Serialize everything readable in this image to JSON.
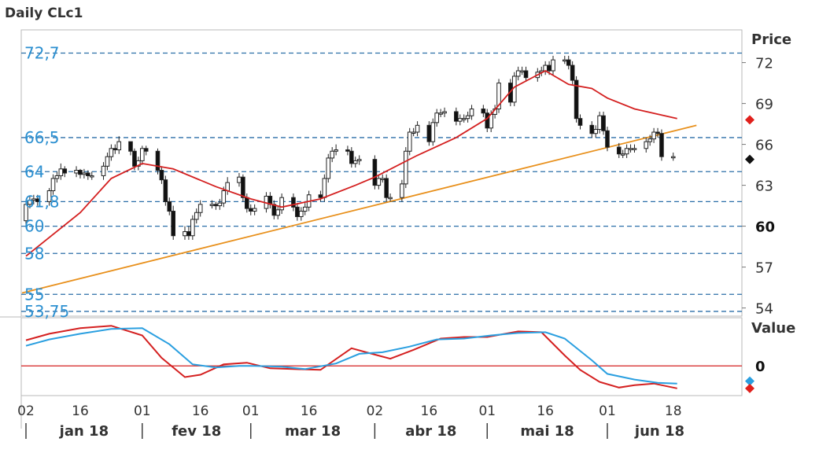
{
  "chart_data": {
    "type": "candlestick",
    "title": "Daily CLc1",
    "colors": {
      "bull_candle": "#ffffff",
      "bear_candle": "#111111",
      "moving_average": "#d42020",
      "trendline": "#e8901c",
      "level_lines": "#2b6fa8",
      "level_labels": "#2b8fd0",
      "osc_red": "#d42020",
      "osc_blue": "#2a9fe0",
      "marker_red": "#e0201c",
      "marker_black": "#111111",
      "marker_blue": "#2a9fe0"
    },
    "price_panel": {
      "ylabel": "Price",
      "ylim": [
        53.4,
        74.4
      ],
      "ticks": [
        {
          "value": 72,
          "label": "72",
          "bold": false
        },
        {
          "value": 69,
          "label": "69",
          "bold": false
        },
        {
          "value": 66,
          "label": "66",
          "bold": false
        },
        {
          "value": 63,
          "label": "63",
          "bold": false
        },
        {
          "value": 60,
          "label": "60",
          "bold": true
        },
        {
          "value": 57,
          "label": "57",
          "bold": false
        },
        {
          "value": 54,
          "label": "54",
          "bold": false
        }
      ],
      "horizontal_levels": [
        {
          "value": 72.7,
          "label": "72,7"
        },
        {
          "value": 66.5,
          "label": "66,5"
        },
        {
          "value": 64,
          "label": "64"
        },
        {
          "value": 61.8,
          "label": "61,8"
        },
        {
          "value": 60,
          "label": "60"
        },
        {
          "value": 58,
          "label": "58"
        },
        {
          "value": 55,
          "label": "55"
        },
        {
          "value": 53.75,
          "label": "53,75"
        }
      ],
      "trendline": {
        "from": {
          "x": "2018-01-01",
          "y": 55.1
        },
        "to": {
          "x": "2018-06-24",
          "y": 67.4
        }
      },
      "right_markers": [
        {
          "value": 67.8,
          "color": "#e0201c"
        },
        {
          "value": 64.9,
          "color": "#111111"
        }
      ]
    },
    "candles": {
      "dates": [
        "2018-01-02",
        "2018-01-03",
        "2018-01-04",
        "2018-01-05",
        "2018-01-08",
        "2018-01-09",
        "2018-01-10",
        "2018-01-11",
        "2018-01-12",
        "2018-01-15",
        "2018-01-16",
        "2018-01-17",
        "2018-01-18",
        "2018-01-19",
        "2018-01-22",
        "2018-01-23",
        "2018-01-24",
        "2018-01-25",
        "2018-01-26",
        "2018-01-29",
        "2018-01-30",
        "2018-01-31",
        "2018-02-01",
        "2018-02-02",
        "2018-02-05",
        "2018-02-06",
        "2018-02-07",
        "2018-02-08",
        "2018-02-09",
        "2018-02-12",
        "2018-02-13",
        "2018-02-14",
        "2018-02-15",
        "2018-02-16",
        "2018-02-19",
        "2018-02-20",
        "2018-02-21",
        "2018-02-22",
        "2018-02-23",
        "2018-02-26",
        "2018-02-27",
        "2018-02-28",
        "2018-03-01",
        "2018-03-02",
        "2018-03-05",
        "2018-03-06",
        "2018-03-07",
        "2018-03-08",
        "2018-03-09",
        "2018-03-12",
        "2018-03-13",
        "2018-03-14",
        "2018-03-15",
        "2018-03-16",
        "2018-03-19",
        "2018-03-20",
        "2018-03-21",
        "2018-03-22",
        "2018-03-23",
        "2018-03-26",
        "2018-03-27",
        "2018-03-28",
        "2018-03-29",
        "2018-04-02",
        "2018-04-03",
        "2018-04-04",
        "2018-04-05",
        "2018-04-06",
        "2018-04-09",
        "2018-04-10",
        "2018-04-11",
        "2018-04-12",
        "2018-04-13",
        "2018-04-16",
        "2018-04-17",
        "2018-04-18",
        "2018-04-19",
        "2018-04-20",
        "2018-04-23",
        "2018-04-24",
        "2018-04-25",
        "2018-04-26",
        "2018-04-27",
        "2018-04-30",
        "2018-05-01",
        "2018-05-02",
        "2018-05-03",
        "2018-05-04",
        "2018-05-07",
        "2018-05-08",
        "2018-05-09",
        "2018-05-10",
        "2018-05-11",
        "2018-05-14",
        "2018-05-15",
        "2018-05-16",
        "2018-05-17",
        "2018-05-18",
        "2018-05-21",
        "2018-05-22",
        "2018-05-23",
        "2018-05-24",
        "2018-05-25",
        "2018-05-28",
        "2018-05-29",
        "2018-05-30",
        "2018-05-31",
        "2018-06-01",
        "2018-06-04",
        "2018-06-05",
        "2018-06-06",
        "2018-06-07",
        "2018-06-08",
        "2018-06-11",
        "2018-06-12",
        "2018-06-13",
        "2018-06-14",
        "2018-06-15",
        "2018-06-18"
      ],
      "open": [
        60.4,
        61.6,
        61.9,
        62.0,
        61.8,
        62.6,
        63.5,
        63.7,
        64.2,
        63.9,
        64.1,
        63.8,
        63.9,
        63.7,
        63.7,
        64.4,
        65.1,
        65.7,
        65.6,
        66.2,
        65.5,
        64.4,
        64.8,
        65.7,
        65.5,
        64.1,
        63.4,
        61.8,
        61.1,
        59.3,
        59.6,
        59.3,
        60.5,
        61.0,
        61.6,
        61.6,
        61.5,
        61.7,
        62.6,
        63.2,
        63.6,
        62.1,
        61.3,
        61.1,
        61.3,
        62.2,
        61.6,
        60.8,
        61.2,
        62.1,
        61.4,
        60.7,
        61.1,
        61.4,
        62.3,
        62.1,
        63.5,
        65.0,
        65.5,
        65.6,
        65.5,
        64.6,
        64.8,
        64.9,
        63.0,
        63.5,
        63.5,
        62.1,
        62.1,
        63.1,
        65.5,
        66.9,
        66.9,
        67.4,
        66.2,
        67.6,
        68.3,
        68.3,
        68.4,
        67.7,
        67.9,
        67.9,
        68.1,
        68.6,
        68.3,
        67.2,
        68.2,
        68.6,
        70.5,
        69.1,
        71.0,
        71.4,
        71.4,
        70.9,
        71.3,
        71.4,
        71.8,
        71.4,
        72.2,
        72.2,
        71.8,
        70.7,
        67.9,
        67.4,
        66.8,
        67.1,
        68.1,
        67.0,
        65.8,
        65.3,
        65.3,
        65.7,
        65.7,
        65.7,
        66.2,
        66.4,
        66.9,
        66.8,
        65.1
      ],
      "close": [
        61.6,
        61.9,
        62.0,
        61.8,
        62.6,
        63.5,
        63.7,
        64.2,
        63.9,
        64.1,
        63.8,
        63.9,
        63.7,
        63.7,
        64.4,
        65.1,
        65.7,
        65.6,
        66.2,
        65.5,
        64.4,
        64.8,
        65.7,
        65.5,
        64.1,
        63.4,
        61.8,
        61.1,
        59.3,
        59.6,
        59.3,
        60.5,
        61.0,
        61.6,
        61.6,
        61.5,
        61.7,
        62.6,
        63.2,
        63.6,
        62.1,
        61.3,
        61.1,
        61.3,
        62.2,
        61.6,
        60.8,
        61.2,
        62.1,
        61.4,
        60.7,
        61.1,
        61.4,
        62.3,
        62.1,
        63.5,
        65.0,
        65.5,
        65.6,
        65.5,
        64.6,
        64.8,
        64.9,
        63.0,
        63.5,
        63.5,
        62.1,
        62.1,
        63.1,
        65.5,
        66.9,
        66.9,
        67.4,
        66.2,
        67.6,
        68.3,
        68.3,
        68.4,
        67.7,
        67.9,
        67.9,
        68.1,
        68.6,
        68.3,
        67.2,
        68.2,
        68.6,
        70.5,
        69.1,
        71.0,
        71.4,
        71.4,
        70.9,
        71.3,
        71.4,
        71.8,
        71.4,
        72.2,
        72.2,
        71.8,
        70.7,
        67.9,
        67.4,
        66.8,
        67.1,
        68.1,
        67.0,
        65.8,
        65.3,
        65.3,
        65.7,
        65.7,
        65.7,
        66.2,
        66.4,
        66.9,
        66.8,
        65.1,
        65.1
      ],
      "high": [
        61.8,
        62.2,
        62.3,
        62.3,
        62.8,
        63.8,
        64.0,
        64.6,
        64.4,
        64.4,
        64.2,
        64.2,
        64.1,
        64.0,
        64.7,
        65.4,
        66.0,
        66.0,
        66.6,
        66.0,
        65.7,
        65.1,
        65.9,
        65.9,
        65.7,
        64.4,
        63.7,
        62.1,
        61.5,
        60.0,
        60.0,
        60.8,
        61.3,
        61.9,
        61.9,
        61.8,
        62.0,
        62.9,
        63.6,
        63.9,
        63.8,
        62.4,
        61.6,
        61.6,
        62.5,
        62.5,
        61.9,
        61.5,
        62.4,
        62.4,
        61.7,
        61.4,
        61.7,
        62.6,
        62.6,
        63.8,
        65.3,
        65.8,
        66.0,
        65.9,
        65.8,
        65.1,
        65.2,
        65.2,
        63.8,
        63.8,
        63.8,
        62.4,
        63.4,
        65.8,
        67.2,
        67.2,
        67.7,
        67.7,
        67.9,
        68.6,
        68.6,
        68.7,
        68.7,
        68.2,
        68.2,
        68.4,
        68.9,
        68.9,
        68.6,
        68.5,
        68.9,
        70.8,
        70.8,
        71.3,
        71.7,
        71.7,
        71.7,
        71.6,
        71.7,
        72.1,
        72.1,
        72.5,
        72.5,
        72.5,
        72.1,
        71.0,
        68.2,
        67.7,
        67.4,
        68.4,
        68.4,
        67.3,
        66.1,
        65.6,
        66.0,
        66.0,
        66.0,
        66.5,
        66.7,
        67.2,
        67.2,
        67.1,
        65.4
      ],
      "low": [
        60.1,
        61.3,
        61.6,
        61.5,
        61.5,
        62.3,
        63.2,
        63.4,
        63.6,
        63.6,
        63.5,
        63.5,
        63.4,
        63.4,
        63.4,
        64.1,
        64.8,
        65.3,
        65.3,
        65.2,
        64.1,
        64.1,
        64.5,
        65.2,
        63.8,
        63.1,
        61.5,
        60.8,
        59.0,
        59.0,
        59.0,
        59.0,
        60.2,
        60.7,
        61.3,
        61.2,
        61.2,
        61.4,
        62.3,
        62.9,
        61.8,
        61.0,
        60.8,
        60.8,
        61.0,
        61.3,
        60.5,
        60.5,
        60.9,
        61.1,
        60.4,
        60.4,
        60.8,
        61.1,
        61.8,
        61.8,
        63.2,
        64.7,
        65.2,
        65.2,
        64.3,
        64.3,
        64.5,
        62.7,
        62.7,
        63.2,
        61.8,
        61.8,
        61.8,
        62.8,
        65.2,
        66.6,
        66.6,
        65.9,
        65.9,
        67.3,
        68.0,
        68.0,
        67.4,
        67.4,
        67.6,
        67.6,
        67.8,
        68.0,
        66.9,
        66.9,
        67.9,
        68.3,
        68.8,
        68.8,
        70.7,
        71.1,
        70.6,
        70.6,
        71.0,
        71.1,
        71.1,
        71.1,
        71.9,
        71.5,
        70.4,
        67.6,
        67.1,
        66.5,
        66.5,
        66.8,
        66.7,
        65.5,
        65.0,
        65.0,
        65.0,
        65.4,
        65.4,
        65.4,
        65.9,
        66.1,
        66.5,
        64.8,
        64.8
      ]
    },
    "moving_average": {
      "dates": [
        "2018-01-02",
        "2018-01-16",
        "2018-01-24",
        "2018-02-01",
        "2018-02-09",
        "2018-02-20",
        "2018-03-01",
        "2018-03-09",
        "2018-03-19",
        "2018-03-28",
        "2018-04-02",
        "2018-04-13",
        "2018-04-23",
        "2018-05-01",
        "2018-05-08",
        "2018-05-16",
        "2018-05-22",
        "2018-05-28",
        "2018-06-01",
        "2018-06-08",
        "2018-06-19"
      ],
      "values": [
        57.8,
        61.0,
        63.5,
        64.6,
        64.2,
        62.9,
        62.0,
        61.4,
        62.0,
        63.0,
        63.6,
        65.2,
        66.5,
        67.9,
        70.2,
        71.4,
        70.4,
        70.1,
        69.4,
        68.6,
        67.9
      ]
    },
    "oscillator_panel": {
      "ylabel": "Value",
      "ylim": [
        -0.37,
        0.6
      ],
      "ticks": [
        {
          "value": 0,
          "label": "0"
        }
      ],
      "zero_line": true,
      "series": [
        {
          "color": "#d42020",
          "dates": [
            "2018-01-02",
            "2018-01-08",
            "2018-01-16",
            "2018-01-24",
            "2018-02-01",
            "2018-02-06",
            "2018-02-12",
            "2018-02-16",
            "2018-02-22",
            "2018-02-28",
            "2018-03-06",
            "2018-03-12",
            "2018-03-19",
            "2018-03-27",
            "2018-04-02",
            "2018-04-06",
            "2018-04-12",
            "2018-04-19",
            "2018-04-25",
            "2018-05-01",
            "2018-05-09",
            "2018-05-15",
            "2018-05-21",
            "2018-05-25",
            "2018-05-30",
            "2018-06-04",
            "2018-06-08",
            "2018-06-13",
            "2018-06-19"
          ],
          "values": [
            0.32,
            0.4,
            0.47,
            0.5,
            0.38,
            0.1,
            -0.14,
            -0.11,
            0.02,
            0.04,
            -0.03,
            -0.04,
            -0.05,
            0.22,
            0.14,
            0.09,
            0.2,
            0.34,
            0.36,
            0.36,
            0.43,
            0.42,
            0.13,
            -0.05,
            -0.2,
            -0.27,
            -0.24,
            -0.22,
            -0.28
          ]
        },
        {
          "color": "#2a9fe0",
          "dates": [
            "2018-01-02",
            "2018-01-08",
            "2018-01-16",
            "2018-01-24",
            "2018-02-01",
            "2018-02-08",
            "2018-02-14",
            "2018-02-20",
            "2018-02-26",
            "2018-03-02",
            "2018-03-09",
            "2018-03-15",
            "2018-03-23",
            "2018-03-29",
            "2018-04-04",
            "2018-04-11",
            "2018-04-18",
            "2018-04-25",
            "2018-05-02",
            "2018-05-09",
            "2018-05-16",
            "2018-05-21",
            "2018-05-28",
            "2018-06-01",
            "2018-06-08",
            "2018-06-14",
            "2018-06-19"
          ],
          "values": [
            0.25,
            0.33,
            0.4,
            0.46,
            0.47,
            0.27,
            0.02,
            -0.02,
            0.0,
            0.0,
            -0.01,
            -0.04,
            0.03,
            0.15,
            0.17,
            0.24,
            0.33,
            0.34,
            0.38,
            0.41,
            0.42,
            0.34,
            0.07,
            -0.1,
            -0.17,
            -0.21,
            -0.22
          ]
        }
      ],
      "right_markers": [
        {
          "value": -0.19,
          "color": "#2a9fe0"
        },
        {
          "value": -0.28,
          "color": "#e0201c"
        }
      ]
    },
    "x_axis": {
      "xlim": [
        "2018-01-02",
        "2018-06-28"
      ],
      "day_ticks": [
        {
          "date": "2018-01-02",
          "label": "02"
        },
        {
          "date": "2018-01-16",
          "label": "16"
        },
        {
          "date": "2018-02-01",
          "label": "01"
        },
        {
          "date": "2018-02-16",
          "label": "16"
        },
        {
          "date": "2018-03-01",
          "label": "01"
        },
        {
          "date": "2018-03-16",
          "label": "16"
        },
        {
          "date": "2018-04-02",
          "label": "02"
        },
        {
          "date": "2018-04-16",
          "label": "16"
        },
        {
          "date": "2018-05-01",
          "label": "01"
        },
        {
          "date": "2018-05-16",
          "label": "16"
        },
        {
          "date": "2018-06-01",
          "label": "01"
        },
        {
          "date": "2018-06-18",
          "label": "18"
        }
      ],
      "months": [
        {
          "label": "jan 18",
          "start": "2018-01-02",
          "end": "2018-02-01"
        },
        {
          "label": "fev 18",
          "start": "2018-02-01",
          "end": "2018-03-01"
        },
        {
          "label": "mar 18",
          "start": "2018-03-01",
          "end": "2018-04-02"
        },
        {
          "label": "abr 18",
          "start": "2018-04-02",
          "end": "2018-05-01"
        },
        {
          "label": "mai 18",
          "start": "2018-05-01",
          "end": "2018-06-01"
        },
        {
          "label": "jun 18",
          "start": "2018-06-01",
          "end": "2018-06-28"
        }
      ]
    }
  }
}
